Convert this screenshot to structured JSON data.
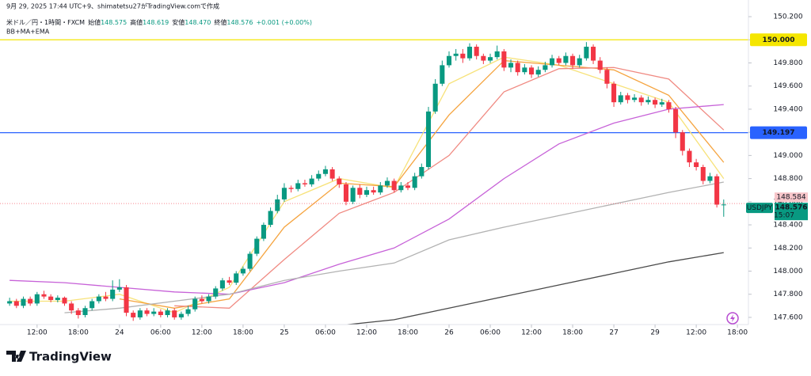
{
  "header": {
    "created": "9月 29, 2025 17:44 UTC+9、shimatetsu27がTradingView.comで作成",
    "symbol": "米ドル／円・1時間・FXCM",
    "ohlc": [
      {
        "label": "始値",
        "value": "148.575"
      },
      {
        "label": "高値",
        "value": "148.619"
      },
      {
        "label": "安値",
        "value": "148.470"
      },
      {
        "label": "終値",
        "value": "148.576"
      }
    ],
    "change": "+0.001 (+0.00%)",
    "indicators": "BB+MA+EMA"
  },
  "chart_data": {
    "type": "candlestick",
    "up_color": "#089981",
    "down_color": "#f23645",
    "grid": false,
    "open": [
      147.72,
      147.74,
      147.7,
      147.76,
      147.72,
      147.8,
      147.78,
      147.75,
      147.77,
      147.72,
      147.66,
      147.62,
      147.68,
      147.74,
      147.78,
      147.76,
      147.84,
      147.86,
      147.64,
      147.6,
      147.66,
      147.63,
      147.65,
      147.62,
      147.66,
      147.6,
      147.63,
      147.67,
      147.76,
      147.74,
      147.78,
      147.85,
      147.92,
      147.9,
      147.98,
      148.02,
      148.15,
      148.28,
      148.4,
      148.52,
      148.62,
      148.72,
      148.71,
      148.76,
      148.75,
      148.8,
      148.84,
      148.88,
      148.8,
      148.75,
      148.6,
      148.72,
      148.66,
      148.7,
      148.68,
      148.74,
      148.78,
      148.7,
      148.74,
      148.72,
      148.82,
      148.9,
      149.38,
      149.62,
      149.78,
      149.86,
      149.88,
      149.84,
      149.94,
      149.86,
      149.82,
      149.85,
      149.9,
      149.76,
      149.8,
      149.72,
      149.76,
      149.7,
      149.74,
      149.78,
      149.84,
      149.8,
      149.86,
      149.78,
      149.84,
      149.94,
      149.82,
      149.74,
      149.62,
      149.46,
      149.52,
      149.48,
      149.5,
      149.46,
      149.48,
      149.44,
      149.46,
      149.4,
      149.2,
      149.04,
      148.94,
      148.9,
      148.78,
      148.82,
      148.575
    ],
    "high": [
      147.77,
      147.76,
      147.78,
      147.78,
      147.82,
      147.83,
      147.8,
      147.79,
      147.78,
      147.74,
      147.68,
      147.7,
      147.76,
      147.8,
      147.82,
      147.92,
      147.93,
      147.88,
      147.66,
      147.68,
      147.68,
      147.68,
      147.67,
      147.68,
      147.68,
      147.65,
      147.7,
      147.78,
      147.79,
      147.8,
      147.87,
      147.94,
      147.95,
      148.0,
      148.04,
      148.17,
      148.3,
      148.42,
      148.55,
      148.66,
      148.76,
      148.74,
      148.79,
      148.79,
      148.83,
      148.87,
      148.91,
      148.9,
      148.82,
      148.77,
      148.74,
      148.75,
      148.73,
      148.73,
      148.77,
      148.81,
      148.8,
      148.77,
      148.77,
      148.85,
      148.93,
      149.42,
      149.66,
      149.82,
      149.9,
      149.92,
      149.92,
      149.97,
      149.96,
      149.88,
      149.88,
      149.95,
      149.92,
      149.83,
      149.82,
      149.79,
      149.78,
      149.77,
      149.81,
      149.87,
      149.86,
      149.89,
      149.88,
      149.87,
      149.98,
      149.96,
      149.85,
      149.76,
      149.64,
      149.55,
      149.54,
      149.53,
      149.52,
      149.51,
      149.5,
      149.49,
      149.48,
      149.42,
      149.22,
      149.06,
      148.97,
      148.92,
      148.85,
      148.84,
      148.619
    ],
    "low": [
      147.7,
      147.68,
      147.68,
      147.7,
      147.7,
      147.76,
      147.73,
      147.73,
      147.7,
      147.63,
      147.59,
      147.6,
      147.66,
      147.72,
      147.74,
      147.74,
      147.82,
      147.61,
      147.57,
      147.58,
      147.61,
      147.61,
      147.6,
      147.6,
      147.58,
      147.58,
      147.61,
      147.65,
      147.72,
      147.72,
      147.76,
      147.83,
      147.88,
      147.88,
      147.96,
      148.0,
      148.13,
      148.26,
      148.38,
      148.5,
      148.6,
      148.68,
      148.69,
      148.73,
      148.73,
      148.78,
      148.82,
      148.78,
      148.72,
      148.57,
      148.58,
      148.63,
      148.64,
      148.66,
      148.66,
      148.72,
      148.68,
      148.68,
      148.7,
      148.7,
      148.8,
      148.88,
      149.36,
      149.6,
      149.76,
      149.82,
      149.8,
      149.82,
      149.83,
      149.79,
      149.8,
      149.83,
      149.73,
      149.72,
      149.69,
      149.7,
      149.67,
      149.68,
      149.72,
      149.76,
      149.78,
      149.78,
      149.75,
      149.76,
      149.82,
      149.79,
      149.71,
      149.58,
      149.42,
      149.44,
      149.45,
      149.46,
      149.43,
      149.44,
      149.41,
      149.42,
      149.37,
      149.15,
      149.0,
      148.9,
      148.87,
      148.75,
      148.76,
      148.55,
      148.47
    ],
    "close": [
      147.74,
      147.7,
      147.76,
      147.72,
      147.8,
      147.78,
      147.75,
      147.77,
      147.72,
      147.66,
      147.62,
      147.68,
      147.74,
      147.78,
      147.76,
      147.84,
      147.86,
      147.64,
      147.6,
      147.66,
      147.63,
      147.65,
      147.62,
      147.66,
      147.6,
      147.63,
      147.67,
      147.76,
      147.74,
      147.78,
      147.85,
      147.92,
      147.9,
      147.98,
      148.02,
      148.15,
      148.28,
      148.4,
      148.52,
      148.62,
      148.72,
      148.71,
      148.76,
      148.75,
      148.8,
      148.84,
      148.88,
      148.8,
      148.75,
      148.6,
      148.72,
      148.66,
      148.7,
      148.68,
      148.74,
      148.78,
      148.7,
      148.74,
      148.72,
      148.82,
      148.9,
      149.38,
      149.62,
      149.78,
      149.86,
      149.88,
      149.84,
      149.94,
      149.86,
      149.82,
      149.85,
      149.9,
      149.76,
      149.8,
      149.72,
      149.76,
      149.7,
      149.74,
      149.78,
      149.84,
      149.8,
      149.86,
      149.78,
      149.84,
      149.94,
      149.82,
      149.74,
      149.62,
      149.46,
      149.52,
      149.48,
      149.5,
      149.46,
      149.48,
      149.44,
      149.46,
      149.4,
      149.2,
      149.04,
      148.94,
      148.9,
      148.78,
      148.82,
      148.575,
      148.576
    ],
    "indicators": [
      {
        "color": "#f7e27a",
        "x": [
          0,
          8,
          16,
          24,
          32,
          40,
          48,
          56,
          64,
          72,
          80,
          88,
          96,
          104
        ],
        "values": [
          147.74,
          147.74,
          147.8,
          147.64,
          147.86,
          148.6,
          148.8,
          148.72,
          149.62,
          149.85,
          149.78,
          149.62,
          149.46,
          148.8
        ]
      },
      {
        "color": "#f5a43f",
        "x": [
          16,
          24,
          32,
          40,
          48,
          56,
          64,
          72,
          80,
          88,
          96,
          104
        ],
        "values": [
          147.76,
          147.68,
          147.76,
          148.38,
          148.76,
          148.73,
          149.35,
          149.82,
          149.78,
          149.74,
          149.52,
          148.94
        ]
      },
      {
        "color": "#f08a82",
        "x": [
          24,
          32,
          40,
          48,
          56,
          64,
          72,
          80,
          88,
          96,
          104
        ],
        "values": [
          147.7,
          147.68,
          148.1,
          148.5,
          148.68,
          149.0,
          149.55,
          149.75,
          149.76,
          149.66,
          149.22
        ]
      },
      {
        "color": "#c762d8",
        "x": [
          0,
          8,
          16,
          24,
          32,
          40,
          48,
          56,
          64,
          72,
          80,
          88,
          96,
          104
        ],
        "values": [
          147.92,
          147.9,
          147.86,
          147.82,
          147.8,
          147.9,
          148.06,
          148.2,
          148.45,
          148.8,
          149.1,
          149.28,
          149.4,
          149.44
        ]
      },
      {
        "color": "#b2b2b2",
        "x": [
          8,
          16,
          24,
          32,
          40,
          48,
          56,
          64,
          72,
          80,
          88,
          96,
          104
        ],
        "values": [
          147.64,
          147.68,
          147.74,
          147.8,
          147.92,
          148.0,
          148.07,
          148.27,
          148.38,
          148.48,
          148.58,
          148.68,
          148.77
        ]
      },
      {
        "color": "#4a4a4a",
        "x": [
          48,
          56,
          64,
          72,
          80,
          88,
          96,
          104
        ],
        "values": [
          147.53,
          147.58,
          147.68,
          147.78,
          147.88,
          147.98,
          148.08,
          148.16
        ]
      }
    ],
    "hlines": [
      {
        "value": 150.0,
        "label": "150.000",
        "color": "#f5e600",
        "text_color": "#000000"
      },
      {
        "value": 149.197,
        "label": "149.197",
        "color": "#2962ff",
        "text_color": "#ffffff"
      }
    ],
    "current_price": {
      "value": 148.584,
      "label": "148.584",
      "color": "#f23645"
    },
    "price_tag": {
      "symbol": "USDJPY",
      "price": "148.576",
      "countdown": "15:07",
      "color": "#089981"
    },
    "xlim": [
      -1.4,
      107.6
    ],
    "xticks": [
      {
        "value": 4,
        "label": "12:00"
      },
      {
        "value": 10,
        "label": "18:00"
      },
      {
        "value": 16,
        "label": "24"
      },
      {
        "value": 22,
        "label": "06:00"
      },
      {
        "value": 28,
        "label": "12:00"
      },
      {
        "value": 34,
        "label": "18:00"
      },
      {
        "value": 40,
        "label": "25"
      },
      {
        "value": 46,
        "label": "06:00"
      },
      {
        "value": 52,
        "label": "12:00"
      },
      {
        "value": 58,
        "label": "18:00"
      },
      {
        "value": 64,
        "label": "26"
      },
      {
        "value": 70,
        "label": "06:00"
      },
      {
        "value": 76,
        "label": "12:00"
      },
      {
        "value": 82,
        "label": "18:00"
      },
      {
        "value": 88,
        "label": "27"
      },
      {
        "value": 94,
        "label": "29"
      },
      {
        "value": 100,
        "label": "12:00"
      },
      {
        "value": 106,
        "label": "18:00"
      }
    ],
    "ylim": [
      147.538,
      150.344
    ],
    "yticks": [
      {
        "value": 147.6,
        "label": "147.600"
      },
      {
        "value": 147.8,
        "label": "147.800"
      },
      {
        "value": 148.0,
        "label": "148.000"
      },
      {
        "value": 148.2,
        "label": "148.200"
      },
      {
        "value": 148.4,
        "label": "148.400"
      },
      {
        "value": 148.6,
        "label": "148.600"
      },
      {
        "value": 148.8,
        "label": "148.800"
      },
      {
        "value": 149.0,
        "label": "149.000"
      },
      {
        "value": 149.2,
        "label": "149.200"
      },
      {
        "value": 149.4,
        "label": "149.400"
      },
      {
        "value": 149.6,
        "label": "149.600"
      },
      {
        "value": 149.8,
        "label": "149.800"
      },
      {
        "value": 150.0,
        "label": "150.000"
      },
      {
        "value": 150.2,
        "label": "150.200"
      }
    ]
  },
  "footer": {
    "brand": "TradingView"
  }
}
